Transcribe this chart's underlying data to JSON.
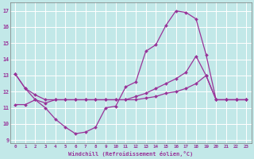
{
  "xlabel": "Windchill (Refroidissement éolien,°C)",
  "background_color": "#c2e8e8",
  "grid_color": "#ffffff",
  "line_color": "#993399",
  "ylim": [
    8.8,
    17.5
  ],
  "xlim": [
    -0.5,
    23.5
  ],
  "yticks": [
    9,
    10,
    11,
    12,
    13,
    14,
    15,
    16,
    17
  ],
  "xticks": [
    0,
    1,
    2,
    3,
    4,
    5,
    6,
    7,
    8,
    9,
    10,
    11,
    12,
    13,
    14,
    15,
    16,
    17,
    18,
    19,
    20,
    21,
    22,
    23
  ],
  "s1_x": [
    0,
    1,
    2,
    3,
    4,
    5,
    6,
    7,
    8,
    9,
    10,
    11,
    12,
    13,
    14,
    15,
    16,
    17,
    18,
    19,
    20,
    21,
    22,
    23
  ],
  "s1_y": [
    13.1,
    12.2,
    11.5,
    11.0,
    10.3,
    9.8,
    9.4,
    9.5,
    9.8,
    11.0,
    11.1,
    12.3,
    12.6,
    14.5,
    14.9,
    16.1,
    17.0,
    16.9,
    16.5,
    14.3,
    11.5,
    11.5,
    11.5,
    11.5
  ],
  "s2_x": [
    0,
    1,
    2,
    3,
    4,
    5,
    6,
    7,
    8,
    9,
    10,
    11,
    12,
    13,
    14,
    15,
    16,
    17,
    18,
    19,
    20,
    21,
    22,
    23
  ],
  "s2_y": [
    11.2,
    11.2,
    11.5,
    11.3,
    11.5,
    11.5,
    11.5,
    11.5,
    11.5,
    11.5,
    11.5,
    11.5,
    11.5,
    11.6,
    11.7,
    11.9,
    12.0,
    12.2,
    12.5,
    13.0,
    11.5,
    11.5,
    11.5,
    11.5
  ],
  "s3_x": [
    0,
    1,
    2,
    3,
    4,
    5,
    6,
    7,
    8,
    9,
    10,
    11,
    12,
    13,
    14,
    15,
    16,
    17,
    18,
    19,
    20,
    21,
    22,
    23
  ],
  "s3_y": [
    13.1,
    12.2,
    11.8,
    11.5,
    11.5,
    11.5,
    11.5,
    11.5,
    11.5,
    11.5,
    11.5,
    11.5,
    11.7,
    11.9,
    12.2,
    12.5,
    12.8,
    13.2,
    14.2,
    13.0,
    11.5,
    11.5,
    11.5,
    11.5
  ]
}
